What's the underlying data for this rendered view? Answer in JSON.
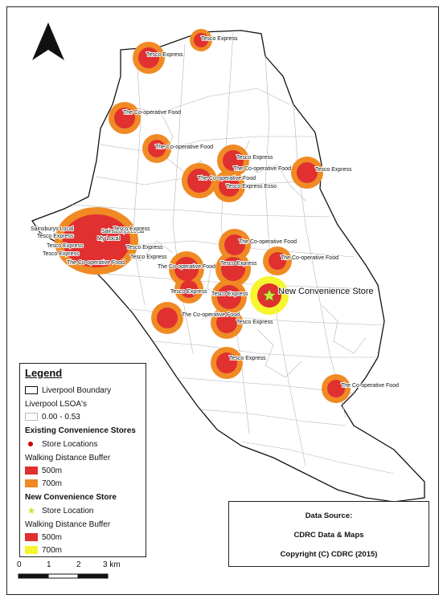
{
  "legend": {
    "title": "Legend",
    "boundary": "Liverpool Boundary",
    "lsoa_heading": "Liverpool LSOA's",
    "lsoa_range": "0.00 - 0.53",
    "existing_heading": "Existing Convenience Stores",
    "store_locations": "Store Locations",
    "buffer_heading_1": "Walking Distance Buffer",
    "buffer_500_1": "500m",
    "buffer_700_1": "700m",
    "new_heading": "New Convenience Store",
    "store_location": "Store Location",
    "buffer_heading_2": "Walking Distance Buffer",
    "buffer_500_2": "500m",
    "buffer_700_2": "700m",
    "colors": {
      "buffer_500": "#e03030",
      "buffer_700": "#f08a24",
      "new_700": "#f5f530",
      "store_dot": "#cc0000",
      "new_star": "#c8e63c"
    }
  },
  "source": {
    "title": "Data Source:",
    "line1": "CDRC Data & Maps",
    "line2": "Copyright (C) CDRC (2015)"
  },
  "scale": {
    "t0": "0",
    "t1": "1",
    "t2": "2",
    "t3": "3 km"
  },
  "north_arrow": "north-arrow-icon",
  "stores": {
    "s1": "Tesco Express",
    "s2": "Tesco Express",
    "s3": "The Co-operative Food",
    "s4": "The Co-operative Food",
    "s5": "Tesco Express",
    "s6": "The Co-operative Food",
    "s7": "Tesco Express",
    "s8": "The Co-operative Food",
    "s9": "Tesco Express Esso",
    "s10": "Sainsburys Local",
    "s11": "Tesco Express",
    "s12": "Tesco Express",
    "s13": "Tesco Express",
    "s14": "Sainsburys Local",
    "s15": "Tesco Express",
    "s16": "My Local",
    "s17": "Tesco Express",
    "s18": "Tesco Express",
    "s19": "The Co-operative Food",
    "s20": "The Co-operative Food",
    "s21": "The Co-operative Food",
    "s22": "The Co-operative Food",
    "s23": "Tesco Express",
    "s24": "Tesco Express",
    "s25": "Tesco Express",
    "s26": "The Co-operative Food",
    "s27": "Tesco Express",
    "s28": "Tesco Express",
    "s29": "The Co-operative Food",
    "new_store": "New Convenience Store"
  }
}
